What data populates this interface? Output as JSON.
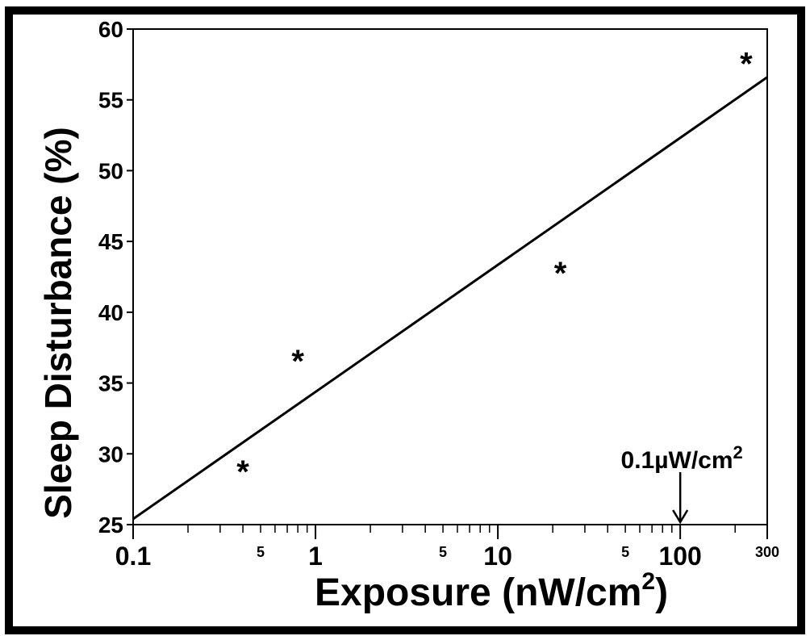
{
  "chart_data": {
    "type": "scatter",
    "x_scale": "log",
    "xlabel": "Exposure  (nW/cm",
    "xlabel_sup": "2",
    "xlabel_close": ")",
    "ylabel": "Sleep Disturbance (%)",
    "xlim": [
      0.1,
      300
    ],
    "ylim": [
      25,
      60
    ],
    "y_ticks": [
      25,
      30,
      35,
      40,
      45,
      50,
      55,
      60
    ],
    "x_major_ticks": [
      {
        "value": 0.1,
        "label": "0.1"
      },
      {
        "value": 1,
        "label": "1"
      },
      {
        "value": 10,
        "label": "10"
      },
      {
        "value": 100,
        "label": "100"
      },
      {
        "value": 300,
        "label": "300"
      }
    ],
    "x_minor_labels": [
      {
        "value": 0.5,
        "label": "5"
      },
      {
        "value": 5,
        "label": "5"
      },
      {
        "value": 50,
        "label": "5"
      }
    ],
    "points": [
      {
        "x": 0.4,
        "y": 29
      },
      {
        "x": 0.8,
        "y": 36.8
      },
      {
        "x": 22,
        "y": 43
      },
      {
        "x": 230,
        "y": 57.8
      }
    ],
    "point_marker": "*",
    "fit_line": {
      "x": [
        0.1,
        300
      ],
      "y": [
        25.4,
        56.6
      ]
    },
    "annotation": {
      "text": "0.1µW/cm",
      "sup": "2",
      "x": 100,
      "arrow": "down"
    },
    "grid": false
  }
}
